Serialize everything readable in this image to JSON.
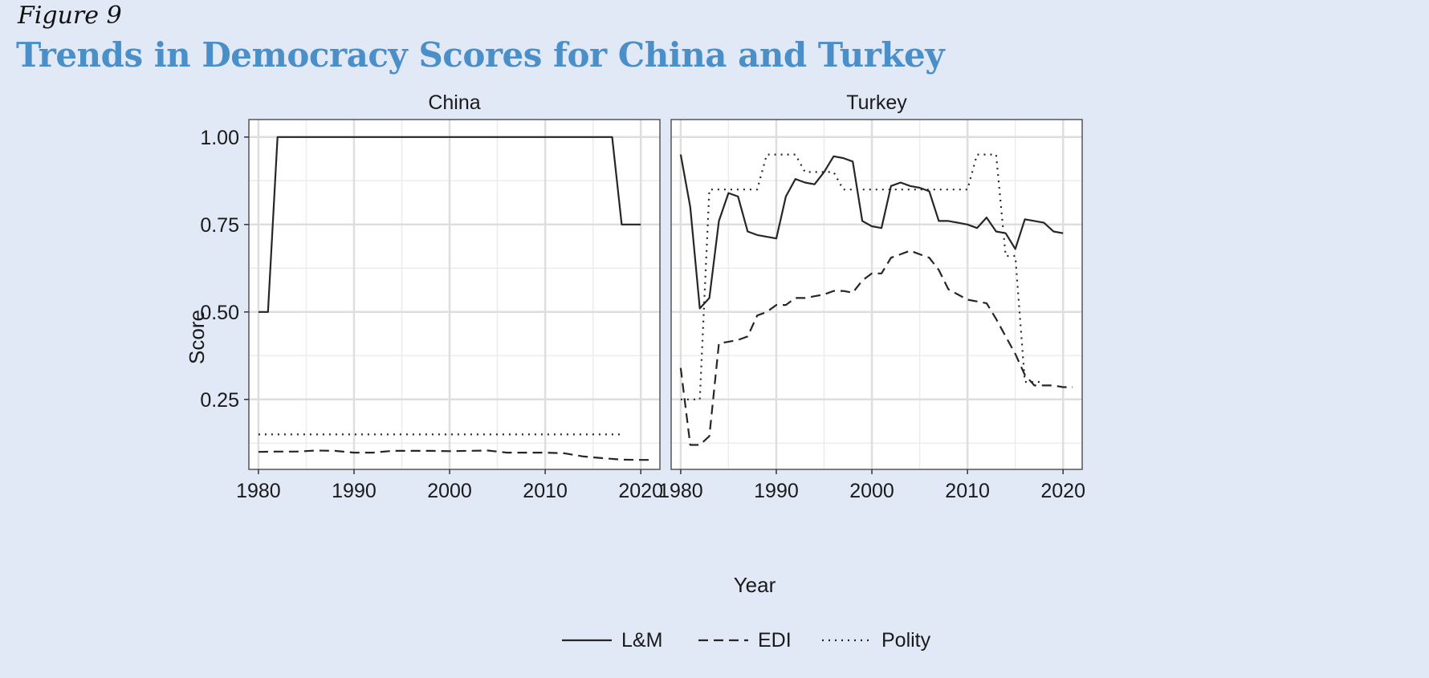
{
  "figure_label": "Figure 9",
  "title": "Trends in Democracy Scores for China and Turkey",
  "chart_data": {
    "type": "line",
    "xlabel": "Year",
    "ylabel": "Score",
    "xlim": [
      1979,
      2022
    ],
    "ylim": [
      0.05,
      1.05
    ],
    "x_ticks": [
      1980,
      1990,
      2000,
      2010,
      2020
    ],
    "y_ticks": [
      0.25,
      0.5,
      0.75,
      1.0
    ],
    "y_tick_labels": [
      "0.25",
      "0.50",
      "0.75",
      "1.00"
    ],
    "grid": true,
    "legend_position": "bottom",
    "legend": [
      {
        "name": "L&M",
        "style": "solid"
      },
      {
        "name": "EDI",
        "style": "dashed"
      },
      {
        "name": "Polity",
        "style": "dotted"
      }
    ],
    "facets": [
      {
        "name": "China",
        "series": [
          {
            "name": "L&M",
            "style": "solid",
            "x": [
              1980,
              1981,
              1982,
              1983,
              1990,
              2000,
              2010,
              2017,
              2018,
              2019,
              2020
            ],
            "y": [
              0.5,
              0.5,
              1,
              1,
              1,
              1,
              1,
              1,
              0.75,
              0.75,
              0.75
            ]
          },
          {
            "name": "EDI",
            "style": "dashed",
            "x": [
              1980,
              1982,
              1984,
              1986,
              1988,
              1990,
              1992,
              1994,
              1996,
              1998,
              2000,
              2002,
              2004,
              2006,
              2008,
              2010,
              2012,
              2014,
              2016,
              2018,
              2020,
              2021
            ],
            "y": [
              0.1,
              0.101,
              0.101,
              0.104,
              0.103,
              0.098,
              0.098,
              0.103,
              0.103,
              0.103,
              0.102,
              0.103,
              0.104,
              0.098,
              0.098,
              0.098,
              0.096,
              0.087,
              0.082,
              0.078,
              0.077,
              0.077
            ]
          },
          {
            "name": "Polity",
            "style": "dotted",
            "x": [
              1980,
              1990,
              2000,
              2010,
              2018
            ],
            "y": [
              0.15,
              0.15,
              0.15,
              0.15,
              0.15
            ]
          }
        ]
      },
      {
        "name": "Turkey",
        "series": [
          {
            "name": "L&M",
            "style": "solid",
            "x": [
              1980,
              1981,
              1982,
              1983,
              1984,
              1985,
              1986,
              1987,
              1988,
              1989,
              1990,
              1991,
              1992,
              1993,
              1994,
              1995,
              1996,
              1997,
              1998,
              1999,
              2000,
              2001,
              2002,
              2003,
              2004,
              2005,
              2006,
              2007,
              2008,
              2009,
              2010,
              2011,
              2012,
              2013,
              2014,
              2015,
              2016,
              2017,
              2018,
              2019,
              2020
            ],
            "y": [
              0.95,
              0.8,
              0.51,
              0.54,
              0.76,
              0.84,
              0.83,
              0.73,
              0.72,
              0.715,
              0.71,
              0.83,
              0.88,
              0.87,
              0.865,
              0.9,
              0.945,
              0.94,
              0.93,
              0.76,
              0.745,
              0.74,
              0.86,
              0.87,
              0.86,
              0.855,
              0.845,
              0.76,
              0.76,
              0.755,
              0.75,
              0.74,
              0.77,
              0.73,
              0.725,
              0.68,
              0.765,
              0.76,
              0.755,
              0.73,
              0.725
            ]
          },
          {
            "name": "EDI",
            "style": "dashed",
            "x": [
              1980,
              1981,
              1982,
              1983,
              1984,
              1985,
              1986,
              1987,
              1988,
              1989,
              1990,
              1991,
              1992,
              1993,
              1994,
              1995,
              1996,
              1997,
              1998,
              1999,
              2000,
              2001,
              2002,
              2003,
              2004,
              2005,
              2006,
              2007,
              2008,
              2009,
              2010,
              2011,
              2012,
              2013,
              2014,
              2015,
              2016,
              2017,
              2018,
              2019,
              2020,
              2021
            ],
            "y": [
              0.34,
              0.12,
              0.12,
              0.145,
              0.41,
              0.415,
              0.42,
              0.43,
              0.49,
              0.5,
              0.52,
              0.52,
              0.54,
              0.54,
              0.545,
              0.55,
              0.56,
              0.56,
              0.555,
              0.59,
              0.61,
              0.61,
              0.655,
              0.665,
              0.675,
              0.665,
              0.655,
              0.62,
              0.565,
              0.55,
              0.535,
              0.53,
              0.525,
              0.48,
              0.43,
              0.38,
              0.32,
              0.29,
              0.29,
              0.29,
              0.285,
              0.285
            ]
          },
          {
            "name": "Polity",
            "style": "dotted",
            "x": [
              1980,
              1981,
              1982,
              1983,
              1984,
              1985,
              1986,
              1987,
              1988,
              1989,
              1990,
              1991,
              1992,
              1993,
              1994,
              1995,
              1996,
              1997,
              1998,
              1999,
              2000,
              2001,
              2002,
              2003,
              2004,
              2005,
              2006,
              2007,
              2008,
              2009,
              2010,
              2011,
              2012,
              2013,
              2014,
              2015,
              2016,
              2017,
              2018
            ],
            "y": [
              0.25,
              0.25,
              0.25,
              0.85,
              0.85,
              0.85,
              0.85,
              0.85,
              0.85,
              0.95,
              0.95,
              0.95,
              0.95,
              0.9,
              0.9,
              0.9,
              0.9,
              0.85,
              0.85,
              0.85,
              0.85,
              0.85,
              0.85,
              0.85,
              0.85,
              0.85,
              0.85,
              0.85,
              0.85,
              0.85,
              0.85,
              0.95,
              0.95,
              0.95,
              0.66,
              0.66,
              0.3,
              0.3,
              0.3
            ]
          }
        ]
      }
    ]
  }
}
